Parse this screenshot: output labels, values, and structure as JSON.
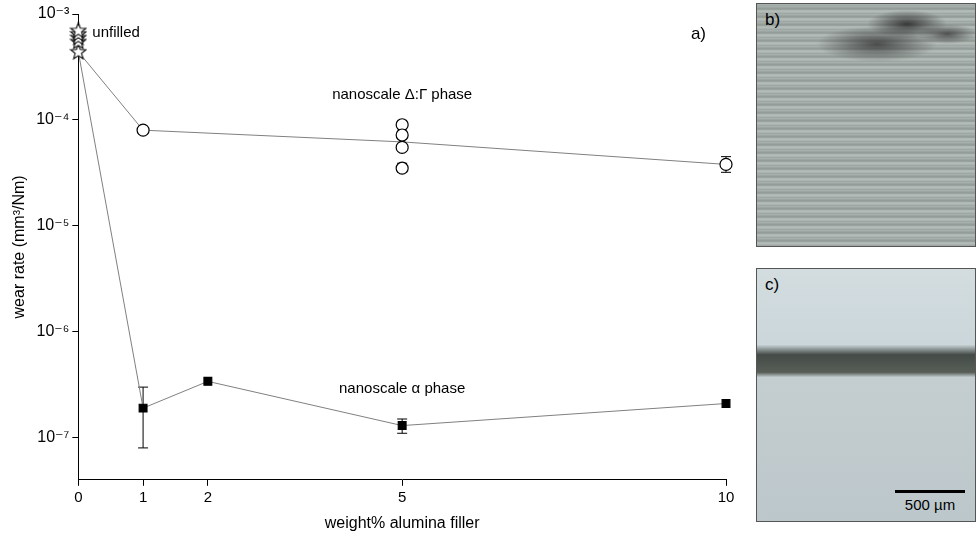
{
  "chart_data": {
    "type": "line",
    "panel": "a)",
    "x_label": "weight% alumina filler",
    "y_label": "wear rate (mm³/Nm)",
    "log": "y",
    "grid": false,
    "xlim": [
      0,
      10
    ],
    "xticks": [
      0,
      1,
      2,
      5,
      10
    ],
    "ylim": [
      4e-08,
      0.001
    ],
    "yticks": [
      {
        "value": 1e-07,
        "label": "10⁻⁷"
      },
      {
        "value": 1e-06,
        "label": "10⁻⁶"
      },
      {
        "value": 1e-05,
        "label": "10⁻⁵"
      },
      {
        "value": 0.0001,
        "label": "10⁻⁴"
      },
      {
        "value": 0.001,
        "label": "10⁻³"
      }
    ],
    "series": [
      {
        "name": "unfilled",
        "type": "scatter",
        "marker": "star",
        "color": "#000000",
        "x": [
          0,
          0,
          0,
          0,
          0
        ],
        "values": [
          0.00044,
          0.00055,
          0.0006,
          0.00065,
          0.0007
        ]
      },
      {
        "name": "nanoscale Δ:Γ phase",
        "type": "line",
        "marker": "circle-open",
        "color": "#000000",
        "line_style": "solid",
        "x": [
          1,
          5,
          5,
          5,
          5,
          10
        ],
        "values": [
          8e-05,
          9e-05,
          7.2e-05,
          5.5e-05,
          3.5e-05,
          3.8e-05
        ],
        "error_bars": [
          null,
          null,
          null,
          null,
          [
            3.2e-05,
            3.9e-05
          ],
          [
            3.2e-05,
            4.5e-05
          ]
        ],
        "line": {
          "x": [
            0,
            1,
            5,
            10
          ],
          "values": [
            0.00044,
            8e-05,
            6.2e-05,
            3.8e-05
          ],
          "color": "#808080"
        }
      },
      {
        "name": "nanoscale α phase",
        "type": "line",
        "marker": "square",
        "color": "#000000",
        "line_style": "solid",
        "x": [
          1,
          2,
          5,
          10
        ],
        "values": [
          1.9e-07,
          3.4e-07,
          1.3e-07,
          2.1e-07
        ],
        "error_bars": [
          [
            8e-08,
            3e-07
          ],
          null,
          [
            1.1e-07,
            1.5e-07
          ],
          null
        ],
        "line": {
          "x": [
            0,
            1,
            2,
            5,
            10
          ],
          "values": [
            0.00044,
            1.9e-07,
            3.4e-07,
            1.3e-07,
            2.1e-07
          ],
          "color": "#808080"
        }
      }
    ]
  },
  "images": [
    {
      "label": "b)"
    },
    {
      "label": "c)",
      "scale_bar": "500 µm"
    }
  ]
}
